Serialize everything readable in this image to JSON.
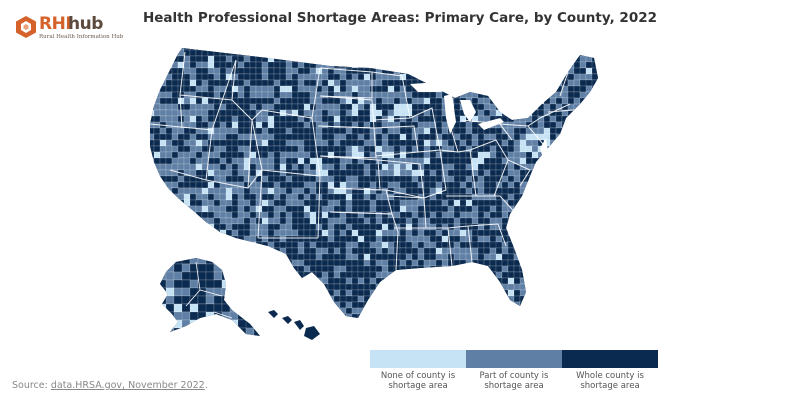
{
  "logo": {
    "word_a": "RHI",
    "word_b": "hub",
    "tagline": "Rural Health Information Hub",
    "colors": {
      "primary": "#d4622a",
      "secondary": "#5b4a3d"
    }
  },
  "title": "Health Professional Shortage Areas: Primary Care, by County, 2022",
  "source": {
    "prefix": "Source: ",
    "link_text": "data.HRSA.gov, November 2022",
    "suffix": "."
  },
  "legend": [
    {
      "label_line1": "None of county is",
      "label_line2": "shortage area",
      "color": "#c6e2f5"
    },
    {
      "label_line1": "Part of county is",
      "label_line2": "shortage area",
      "color": "#5f7fa5"
    },
    {
      "label_line1": "Whole county is",
      "label_line2": "shortage area",
      "color": "#0b2a4f"
    }
  ],
  "map": {
    "region": "United States by county",
    "insets": [
      "Alaska",
      "Hawaii"
    ],
    "state_border_color": "#ffffff"
  }
}
